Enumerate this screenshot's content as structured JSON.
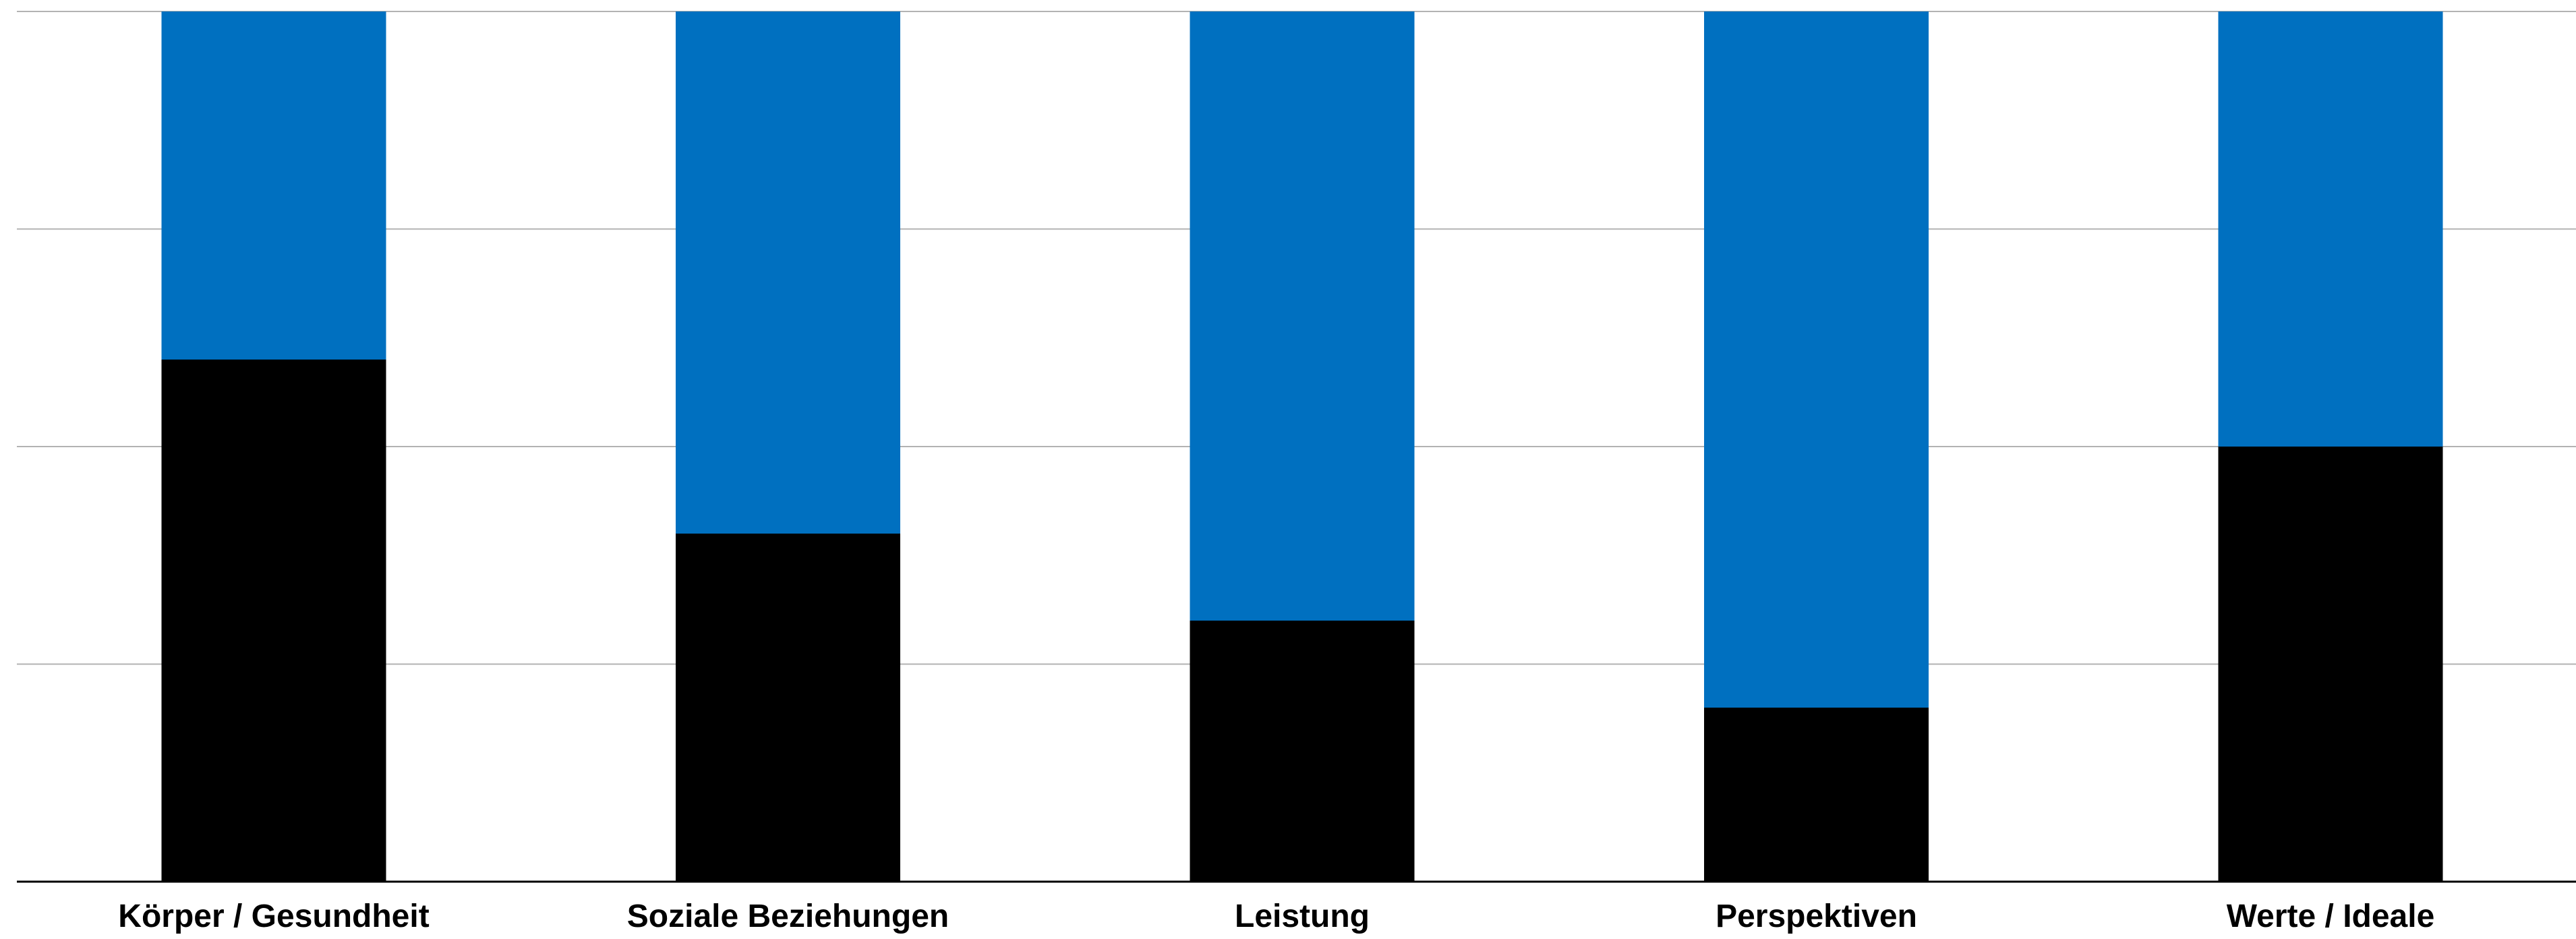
{
  "chart_data": {
    "type": "bar",
    "stacked": true,
    "percent_stacked": true,
    "categories": [
      "Körper / Gesundheit",
      "Soziale Beziehungen",
      "Leistung",
      "Perspektiven",
      "Werte / Ideale"
    ],
    "series": [
      {
        "values": [
          60,
          40,
          30,
          20,
          50
        ],
        "color": "#000000"
      },
      {
        "values": [
          40,
          60,
          70,
          80,
          50
        ],
        "color": "#0070C0"
      }
    ],
    "ylim": [
      0,
      100
    ],
    "yticks": [
      0,
      25,
      50,
      75,
      100
    ],
    "grid": true,
    "grid_color": "#b3b3b3",
    "axis_color": "#000000",
    "legend": "none",
    "title": "",
    "xlabel": "",
    "ylabel": ""
  }
}
